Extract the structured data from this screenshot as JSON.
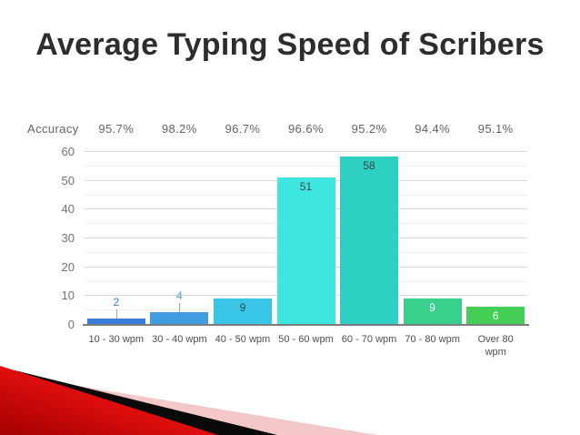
{
  "slide": {
    "title": "Average Typing Speed of Scribers"
  },
  "chart_data": {
    "type": "bar",
    "title": "Average Typing Speed of Scribers",
    "accuracy_label": "Accuracy",
    "categories": [
      "10 - 30 wpm",
      "30 - 40 wpm",
      "40 - 50 wpm",
      "50 - 60 wpm",
      "60 - 70 wpm",
      "70 - 80 wpm",
      "Over 80\nwpm"
    ],
    "values": [
      2,
      4,
      9,
      51,
      58,
      9,
      6
    ],
    "accuracy": [
      "95.7%",
      "98.2%",
      "96.7%",
      "96.6%",
      "95.2%",
      "94.4%",
      "95.1%"
    ],
    "bar_colors": [
      "#3b7dd8",
      "#419de2",
      "#39c5e5",
      "#3ee6e0",
      "#2fd0c4",
      "#39cf8d",
      "#43cf55"
    ],
    "value_label_placement": [
      "above",
      "above",
      "inside",
      "inside",
      "inside",
      "inside",
      "inside"
    ],
    "value_label_colors": [
      "#3b7dd8",
      "#419de2",
      "#33495c",
      "#3e4a50",
      "#3a4548",
      "#ffffff",
      "#ffffff"
    ],
    "xlabel": "",
    "ylabel": "",
    "ylim": [
      0,
      60
    ],
    "y_major_step": 10,
    "y_minor_step": 5,
    "grid": true,
    "legend": "none",
    "axis_colors": {
      "major_grid": "#dadada",
      "minor_grid": "#efefef",
      "baseline": "#7d7d7d",
      "tick_text": "#717171",
      "category_text": "#4e4e4e"
    }
  },
  "decoration": {
    "name": "bottom-left-angled-ribbons",
    "colors": {
      "red_dark": "#a30000",
      "red": "#e60f0f",
      "red_bright": "#ff3b3b",
      "black": "#0a0a0a",
      "pink": "#f4c8c8"
    }
  }
}
